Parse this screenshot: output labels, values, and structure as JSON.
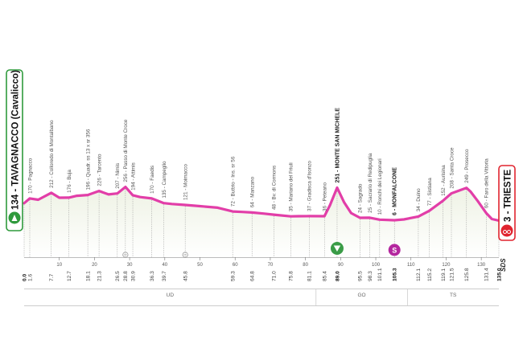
{
  "chart_data": {
    "type": "area",
    "title": "",
    "xlabel": "",
    "ylabel": "",
    "x_range": [
      0,
      135
    ],
    "start": {
      "altitude": "134",
      "name": "TAVAGNACCO (Cavalicco)"
    },
    "finish": {
      "altitude": "3",
      "name": "TRIESTE"
    },
    "waypoints": [
      {
        "km": "0.0",
        "label": "",
        "bold": true
      },
      {
        "km": "1.6",
        "label": "170 - Pagnacco"
      },
      {
        "km": "7.7",
        "label": "212 - Colloredo di Montalbano"
      },
      {
        "km": "12.7",
        "label": "176 - Buja"
      },
      {
        "km": "18.1",
        "label": "196 - Quadr. ss 13 x sr 356"
      },
      {
        "km": "21.3",
        "label": "226 - Tarcento"
      },
      {
        "km": "26.5",
        "label": "207 - Nimis"
      },
      {
        "km": "28.8",
        "label": "256 - Passo di Monte Croce"
      },
      {
        "km": "30.9",
        "label": "194 - Attimis"
      },
      {
        "km": "36.3",
        "label": "170 - Faedis"
      },
      {
        "km": "39.7",
        "label": "135 - Campeglio"
      },
      {
        "km": "45.8",
        "label": "121 - Moimacco"
      },
      {
        "km": "59.3",
        "label": "72 - Buttrio - Ins. sr 56"
      },
      {
        "km": "64.8",
        "label": "64 - Manzano"
      },
      {
        "km": "71.0",
        "label": "48 - Bv. di Cormons"
      },
      {
        "km": "75.8",
        "label": "35 - Mariano del Friuli"
      },
      {
        "km": "81.1",
        "label": "37 - Gradisca d'Isonzo"
      },
      {
        "km": "85.4",
        "label": "36 - Peteano"
      },
      {
        "km": "89.0",
        "label": "251 - MONTE SAN MICHELE",
        "bold": true
      },
      {
        "km": "95.5",
        "label": "24 - Sagrado"
      },
      {
        "km": "98.3",
        "label": "25 - Sacrario di Redipuglia"
      },
      {
        "km": "101.1",
        "label": "10 - Ronchi dei Legionari"
      },
      {
        "km": "105.3",
        "label": "6 - MONFALCONE",
        "bold": true
      },
      {
        "km": "112.1",
        "label": "34 - Duino"
      },
      {
        "km": "115.2",
        "label": "77 - Sistiana"
      },
      {
        "km": "119.1",
        "label": "152 - Aurisina"
      },
      {
        "km": "121.5",
        "label": "208 - Santa Croce"
      },
      {
        "km": "125.8",
        "label": "249 - Prosecco"
      },
      {
        "km": "131.4",
        "label": "60 - Faro della Vittoria"
      },
      {
        "km": "135.0",
        "label": "",
        "bold": true
      }
    ],
    "profile": {
      "km": [
        0,
        1.6,
        4,
        7.7,
        10,
        12.7,
        15,
        18.1,
        21.3,
        24,
        26.5,
        28.8,
        30.9,
        33,
        36.3,
        39.7,
        42,
        45.8,
        50,
        55,
        59.3,
        62,
        64.8,
        68,
        71,
        75.8,
        78,
        81.1,
        85.4,
        87,
        89,
        91,
        93,
        95.5,
        98.3,
        101.1,
        105.3,
        108,
        112.1,
        115.2,
        119.1,
        121.5,
        124,
        125.8,
        127,
        129,
        131.4,
        133,
        135
      ],
      "altitude": [
        134,
        170,
        160,
        212,
        175,
        176,
        190,
        196,
        226,
        200,
        207,
        256,
        194,
        180,
        170,
        135,
        128,
        121,
        112,
        100,
        72,
        68,
        64,
        56,
        48,
        35,
        36,
        37,
        36,
        120,
        251,
        140,
        60,
        24,
        25,
        10,
        6,
        12,
        34,
        77,
        152,
        208,
        232,
        249,
        220,
        150,
        60,
        15,
        3
      ]
    },
    "ticks": [
      10,
      20,
      30,
      40,
      50,
      60,
      70,
      80,
      90,
      100,
      110,
      120,
      130
    ],
    "provinces": [
      "UD",
      "GO",
      "TS"
    ],
    "province_boundaries": [
      83,
      109
    ],
    "markers": [
      {
        "km": 89.0,
        "type": "gpm",
        "color": "#3a9c47"
      },
      {
        "km": 105.3,
        "type": "sprint",
        "color": "#b4279f",
        "label": "S"
      },
      {
        "km": 45.8,
        "type": "feed"
      },
      {
        "km": 28.8,
        "type": "feed"
      }
    ],
    "logo": "SDS",
    "colors": {
      "profile": "#e23ea8",
      "start": "#2f9a3c",
      "finish": "#e0242f",
      "fill_top": "#eef2e4",
      "fill_bottom": "#ffffff"
    }
  }
}
